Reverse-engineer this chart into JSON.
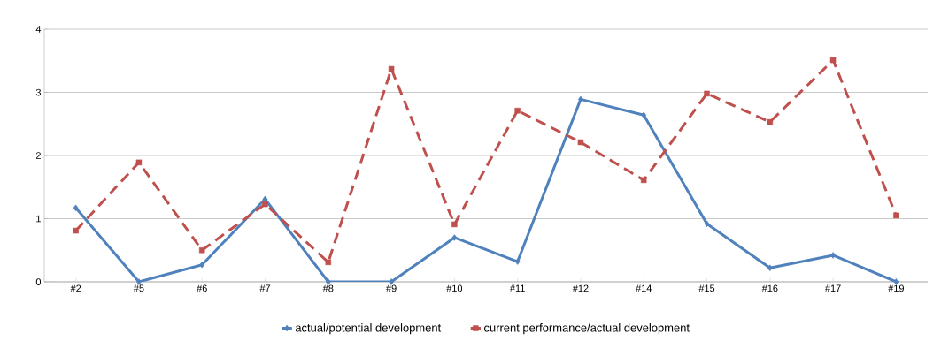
{
  "chart_data": {
    "type": "line",
    "categories": [
      "#2",
      "#5",
      "#6",
      "#7",
      "#8",
      "#9",
      "#10",
      "#11",
      "#12",
      "#14",
      "#15",
      "#16",
      "#17",
      "#19"
    ],
    "series": [
      {
        "name": "actual/potential development",
        "color": "#4f81bd",
        "marker": "diamond",
        "line_style": "solid",
        "values": [
          1.17,
          0,
          0.27,
          1.31,
          0,
          0,
          0.7,
          0.32,
          2.89,
          2.64,
          0.92,
          0.22,
          0.42,
          0
        ]
      },
      {
        "name": "current performance/actual development",
        "color": "#c0504d",
        "marker": "square",
        "line_style": "dashed",
        "values": [
          0.81,
          1.89,
          0.5,
          1.23,
          0.31,
          3.37,
          0.91,
          2.71,
          2.21,
          1.61,
          2.98,
          2.53,
          3.51,
          1.05
        ]
      }
    ],
    "ylim": [
      0,
      4
    ],
    "yticks": [
      0,
      1,
      2,
      3,
      4
    ],
    "grid": "y",
    "legend": "bottom"
  }
}
